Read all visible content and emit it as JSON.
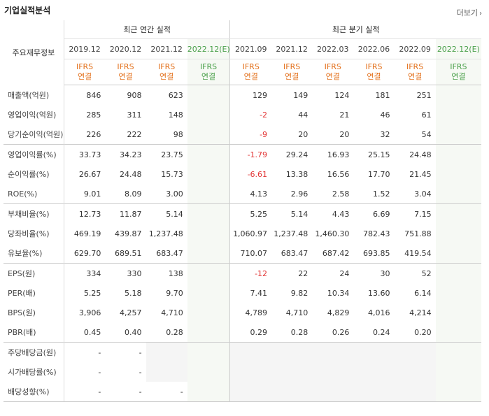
{
  "title": "기업실적분석",
  "more_label": "더보기",
  "more_icon": "chevron-right-icon",
  "row_header_label": "주요재무정보",
  "groups": {
    "annual": "최근 연간 실적",
    "quarterly": "최근 분기 실적"
  },
  "periods": [
    "2019.12",
    "2020.12",
    "2021.12",
    "2022.12(E)",
    "2021.09",
    "2021.12",
    "2022.03",
    "2022.06",
    "2022.09",
    "2022.12(E)"
  ],
  "ifrs": [
    "IFRS\n연결",
    "IFRS\n연결",
    "IFRS\n연결",
    "IFRS\n연결",
    "IFRS\n연결",
    "IFRS\n연결",
    "IFRS\n연결",
    "IFRS\n연결",
    "IFRS\n연결",
    "IFRS\n연결"
  ],
  "colors": {
    "ifrs": "#e3701b",
    "estimate": "#4aa04a",
    "negative": "#e23333"
  },
  "rows": [
    {
      "label": "매출액(억원)",
      "values": [
        "846",
        "908",
        "623",
        "",
        "129",
        "149",
        "124",
        "181",
        "251",
        ""
      ]
    },
    {
      "label": "영업이익(억원)",
      "values": [
        "285",
        "311",
        "148",
        "",
        "-2",
        "44",
        "21",
        "46",
        "61",
        ""
      ]
    },
    {
      "label": "당기순이익(억원)",
      "values": [
        "226",
        "222",
        "98",
        "",
        "-9",
        "20",
        "20",
        "32",
        "54",
        ""
      ]
    },
    {
      "label": "영업이익률(%)",
      "values": [
        "33.73",
        "34.23",
        "23.75",
        "",
        "-1.79",
        "29.24",
        "16.93",
        "25.15",
        "24.48",
        ""
      ]
    },
    {
      "label": "순이익률(%)",
      "values": [
        "26.67",
        "24.48",
        "15.73",
        "",
        "-6.61",
        "13.38",
        "16.56",
        "17.70",
        "21.45",
        ""
      ]
    },
    {
      "label": "ROE(%)",
      "values": [
        "9.01",
        "8.09",
        "3.00",
        "",
        "4.13",
        "2.96",
        "2.58",
        "1.52",
        "3.04",
        ""
      ]
    },
    {
      "label": "부채비율(%)",
      "values": [
        "12.73",
        "11.87",
        "5.14",
        "",
        "5.25",
        "5.14",
        "4.43",
        "6.69",
        "7.15",
        ""
      ]
    },
    {
      "label": "당좌비율(%)",
      "values": [
        "469.19",
        "439.87",
        "1,237.48",
        "",
        "1,060.97",
        "1,237.48",
        "1,460.30",
        "782.43",
        "751.88",
        ""
      ]
    },
    {
      "label": "유보율(%)",
      "values": [
        "629.70",
        "689.51",
        "683.47",
        "",
        "710.07",
        "683.47",
        "687.42",
        "693.85",
        "419.54",
        ""
      ]
    },
    {
      "label": "EPS(원)",
      "values": [
        "334",
        "330",
        "138",
        "",
        "-12",
        "22",
        "24",
        "30",
        "52",
        ""
      ]
    },
    {
      "label": "PER(배)",
      "values": [
        "5.25",
        "5.18",
        "9.70",
        "",
        "7.41",
        "9.82",
        "10.34",
        "13.60",
        "6.14",
        ""
      ]
    },
    {
      "label": "BPS(원)",
      "values": [
        "3,906",
        "4,257",
        "4,710",
        "",
        "4,789",
        "4,710",
        "4,829",
        "4,016",
        "4,214",
        ""
      ]
    },
    {
      "label": "PBR(배)",
      "values": [
        "0.45",
        "0.40",
        "0.28",
        "",
        "0.29",
        "0.28",
        "0.26",
        "0.24",
        "0.20",
        ""
      ]
    },
    {
      "label": "주당배당금(원)",
      "values": [
        "-",
        "-",
        "",
        "",
        "",
        "",
        "",
        "",
        "",
        ""
      ]
    },
    {
      "label": "시가배당률(%)",
      "values": [
        "-",
        "-",
        "",
        "",
        "",
        "",
        "",
        "",
        "",
        ""
      ]
    },
    {
      "label": "배당성향(%)",
      "values": [
        "-",
        "-",
        "-",
        "",
        "",
        "",
        "",
        "",
        "",
        ""
      ]
    }
  ]
}
